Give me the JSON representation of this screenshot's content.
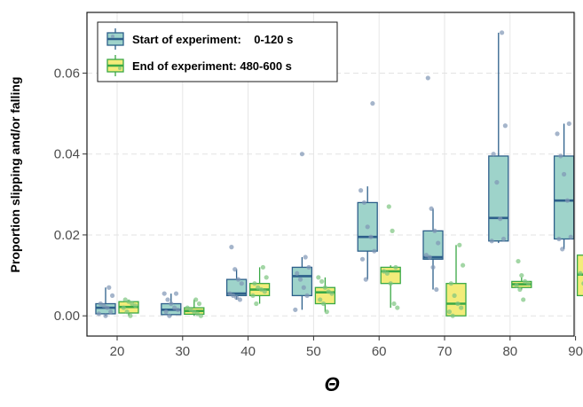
{
  "chart_data": {
    "type": "box",
    "xlabel": "Θ",
    "ylabel": "Proportion slipping and/or falling",
    "categories": [
      "20",
      "30",
      "40",
      "50",
      "60",
      "70",
      "80",
      "90"
    ],
    "ylim": [
      -0.005,
      0.075
    ],
    "yticks": [
      "0.00",
      "0.02",
      "0.04",
      "0.06"
    ],
    "ytick_values": [
      0,
      0.02,
      0.04,
      0.06
    ],
    "grid": true,
    "legend_position": "top-left",
    "series": [
      {
        "name": "Start of experiment:    0-120 s",
        "fill": "#9ed3ca",
        "stroke": "#2d5f8a",
        "point_color": "#7f95b5",
        "boxes": [
          {
            "min": 0.0,
            "q1": 0.0005,
            "median": 0.002,
            "q3": 0.003,
            "max": 0.007
          },
          {
            "min": 0.0,
            "q1": 0.0003,
            "median": 0.0015,
            "q3": 0.003,
            "max": 0.0055
          },
          {
            "min": 0.004,
            "q1": 0.005,
            "median": 0.0055,
            "q3": 0.009,
            "max": 0.0115
          },
          {
            "min": 0.0015,
            "q1": 0.005,
            "median": 0.0098,
            "q3": 0.012,
            "max": 0.0145
          },
          {
            "min": 0.009,
            "q1": 0.016,
            "median": 0.0195,
            "q3": 0.028,
            "max": 0.032
          },
          {
            "min": 0.0065,
            "q1": 0.014,
            "median": 0.0145,
            "q3": 0.021,
            "max": 0.0265
          },
          {
            "min": 0.018,
            "q1": 0.0185,
            "median": 0.0242,
            "q3": 0.0395,
            "max": 0.07
          },
          {
            "min": 0.0165,
            "q1": 0.019,
            "median": 0.0285,
            "q3": 0.0395,
            "max": 0.0475
          }
        ],
        "points": [
          [
            0.0005,
            0.001,
            0.002,
            0.0025,
            0.003,
            0.005,
            0.007,
            0.0
          ],
          [
            0.0,
            0.001,
            0.0015,
            0.002,
            0.003,
            0.004,
            0.0055,
            0.0055
          ],
          [
            0.004,
            0.0045,
            0.005,
            0.0055,
            0.008,
            0.009,
            0.0115,
            0.017
          ],
          [
            0.0015,
            0.005,
            0.007,
            0.009,
            0.0105,
            0.012,
            0.0145,
            0.04
          ],
          [
            0.009,
            0.014,
            0.016,
            0.0195,
            0.022,
            0.028,
            0.031,
            0.0525
          ],
          [
            0.0065,
            0.012,
            0.0145,
            0.015,
            0.018,
            0.021,
            0.0265,
            0.0588
          ],
          [
            0.0185,
            0.019,
            0.024,
            0.033,
            0.04,
            0.047,
            0.07
          ],
          [
            0.0165,
            0.019,
            0.0195,
            0.0285,
            0.035,
            0.0395,
            0.045,
            0.0475
          ]
        ]
      },
      {
        "name": "End of experiment: 480-600 s",
        "fill": "#f3ec7a",
        "stroke": "#3aa845",
        "point_color": "#7cc47f",
        "boxes": [
          {
            "min": 0.0,
            "q1": 0.0007,
            "median": 0.0022,
            "q3": 0.0035,
            "max": 0.004
          },
          {
            "min": 0.0,
            "q1": 0.0004,
            "median": 0.0012,
            "q3": 0.002,
            "max": 0.004
          },
          {
            "min": 0.003,
            "q1": 0.005,
            "median": 0.0065,
            "q3": 0.008,
            "max": 0.012
          },
          {
            "min": 0.001,
            "q1": 0.003,
            "median": 0.0058,
            "q3": 0.007,
            "max": 0.0095
          },
          {
            "min": 0.002,
            "q1": 0.008,
            "median": 0.011,
            "q3": 0.012,
            "max": 0.0125
          },
          {
            "min": 0.0,
            "q1": 0.0,
            "median": 0.003,
            "q3": 0.008,
            "max": 0.0175
          },
          {
            "min": 0.0065,
            "q1": 0.007,
            "median": 0.0078,
            "q3": 0.0085,
            "max": 0.0095
          },
          {
            "min": 0.0,
            "q1": 0.005,
            "median": 0.0102,
            "q3": 0.015,
            "max": 0.0225
          }
        ],
        "points": [
          [
            0.0,
            0.001,
            0.002,
            0.0025,
            0.003,
            0.0035,
            0.004
          ],
          [
            0.0,
            0.0005,
            0.001,
            0.0015,
            0.002,
            0.003,
            0.004
          ],
          [
            0.003,
            0.005,
            0.006,
            0.0065,
            0.007,
            0.008,
            0.0095,
            0.012
          ],
          [
            0.001,
            0.003,
            0.004,
            0.0055,
            0.006,
            0.007,
            0.0085,
            0.0095
          ],
          [
            0.002,
            0.003,
            0.008,
            0.0105,
            0.011,
            0.012,
            0.021,
            0.027
          ],
          [
            0.0,
            0.001,
            0.002,
            0.003,
            0.005,
            0.008,
            0.0125,
            0.0175
          ],
          [
            0.004,
            0.0065,
            0.0075,
            0.008,
            0.0085,
            0.01,
            0.0135
          ],
          [
            0.0,
            0.0015,
            0.005,
            0.008,
            0.0105,
            0.0135,
            0.0175,
            0.0225
          ]
        ]
      }
    ]
  }
}
